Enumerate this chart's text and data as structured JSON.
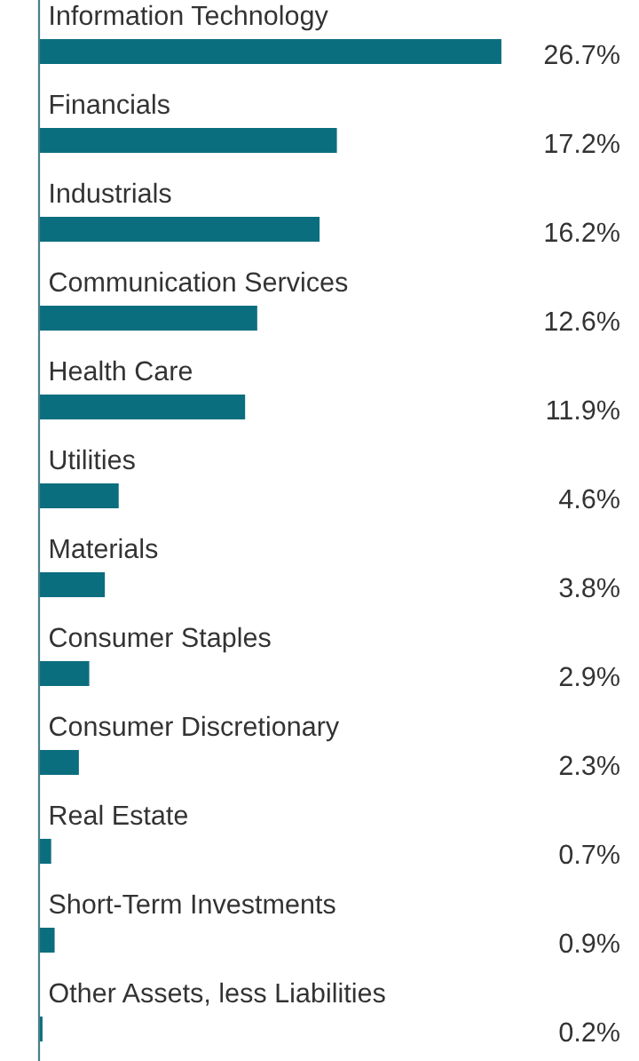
{
  "chart_data": {
    "type": "bar",
    "orientation": "horizontal",
    "categories": [
      "Information Technology",
      "Financials",
      "Industrials",
      "Communication Services",
      "Health Care",
      "Utilities",
      "Materials",
      "Consumer Staples",
      "Consumer Discretionary",
      "Real Estate",
      "Short-Term Investments",
      "Other Assets, less Liabilities"
    ],
    "values": [
      26.7,
      17.2,
      16.2,
      12.6,
      11.9,
      4.6,
      3.8,
      2.9,
      2.3,
      0.7,
      0.9,
      0.2
    ],
    "value_labels": [
      "26.7%",
      "17.2%",
      "16.2%",
      "12.6%",
      "11.9%",
      "4.6%",
      "3.8%",
      "2.9%",
      "2.3%",
      "0.7%",
      "0.9%",
      "0.2%"
    ],
    "color": "#0b6e7e"
  }
}
